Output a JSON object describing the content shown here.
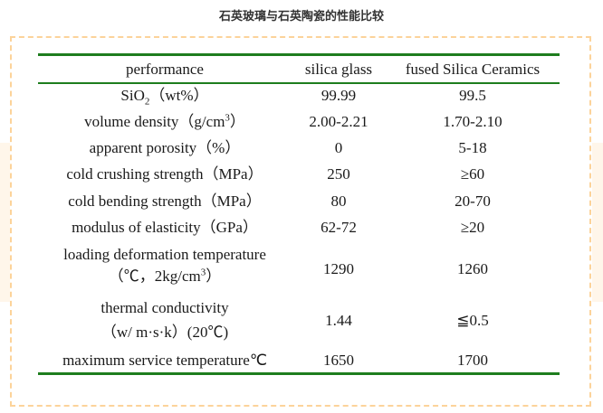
{
  "title": "石英玻璃与石英陶瓷的性能比较",
  "colors": {
    "rule": "#1e7d1e",
    "dashed_border": "#fcd39a"
  },
  "table": {
    "headers": [
      "performance",
      "silica glass",
      "fused Silica Ceramics"
    ],
    "rows": [
      {
        "property": "SiO",
        "sub": "2",
        "suffix": "（wt%）",
        "silica_glass": "99.99",
        "ceramics": "99.5"
      },
      {
        "property": "volume density（g/cm",
        "sup": "3",
        "suffix": "）",
        "silica_glass": "2.00-2.21",
        "ceramics": "1.70-2.10"
      },
      {
        "property": "apparent porosity（%）",
        "silica_glass": "0",
        "ceramics": "5-18"
      },
      {
        "property": "cold crushing strength（MPa）",
        "silica_glass": "250",
        "ceramics": "≥60"
      },
      {
        "property": "cold bending strength（MPa）",
        "silica_glass": "80",
        "ceramics": "20-70"
      },
      {
        "property": "modulus of elasticity（GPa）",
        "silica_glass": "62-72",
        "ceramics": "≥20"
      },
      {
        "property": "loading deformation temperature",
        "line2": "（℃，2kg/cm",
        "sup": "3",
        "suffix": "）",
        "silica_glass": "1290",
        "ceramics": "1260"
      },
      {
        "property": "thermal conductivity",
        "line2": "（w/ m·s·k）(20℃)",
        "silica_glass": "1.44",
        "ceramics": "≦0.5"
      },
      {
        "property": "maximum service temperature℃",
        "silica_glass": "1650",
        "ceramics": "1700"
      }
    ]
  }
}
